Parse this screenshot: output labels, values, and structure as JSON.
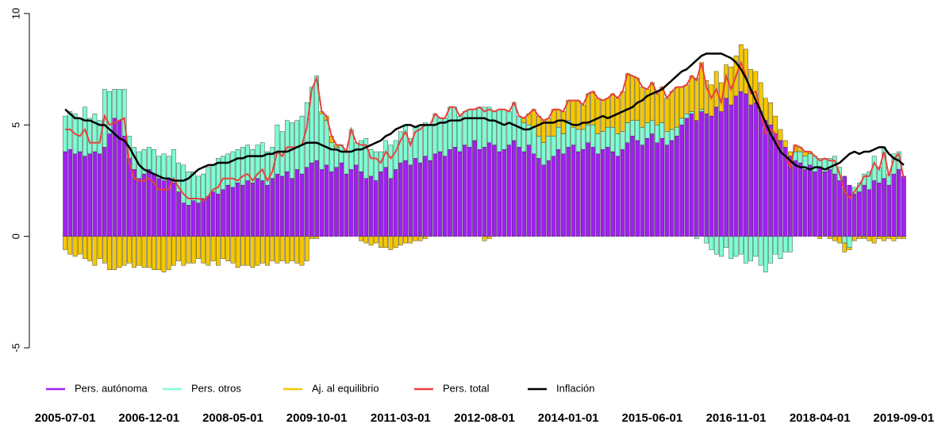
{
  "chart_data": {
    "type": "bar",
    "stacked": true,
    "legend": "bottom",
    "categories": [
      "2005-07-01",
      null,
      null,
      null,
      null,
      null,
      null,
      null,
      null,
      null,
      null,
      null,
      null,
      null,
      null,
      null,
      null,
      "2006-12-01",
      null,
      null,
      null,
      null,
      null,
      null,
      null,
      null,
      null,
      null,
      null,
      null,
      null,
      null,
      null,
      null,
      "2008-05-01",
      null,
      null,
      null,
      null,
      null,
      null,
      null,
      null,
      null,
      null,
      null,
      null,
      null,
      null,
      null,
      null,
      "2009-10-01",
      null,
      null,
      null,
      null,
      null,
      null,
      null,
      null,
      null,
      null,
      null,
      null,
      null,
      null,
      null,
      null,
      "2011-03-01",
      null,
      null,
      null,
      null,
      null,
      null,
      null,
      null,
      null,
      null,
      null,
      null,
      null,
      null,
      null,
      null,
      "2012-08-01",
      null,
      null,
      null,
      null,
      null,
      null,
      null,
      null,
      null,
      null,
      null,
      null,
      null,
      null,
      null,
      null,
      "2014-01-01",
      null,
      null,
      null,
      null,
      null,
      null,
      null,
      null,
      null,
      null,
      null,
      null,
      null,
      null,
      null,
      null,
      "2015-06-01",
      null,
      null,
      null,
      null,
      null,
      null,
      null,
      null,
      null,
      null,
      null,
      null,
      null,
      null,
      null,
      null,
      "2016-11-01",
      null,
      null,
      null,
      null,
      null,
      null,
      null,
      null,
      null,
      null,
      null,
      null,
      null,
      null,
      null,
      null,
      "2018-04-01",
      null,
      null,
      null,
      null,
      null,
      null,
      null,
      null,
      null,
      null,
      null,
      null,
      null,
      null,
      null,
      null,
      "2019-09-01"
    ],
    "ylim": [
      -5,
      10
    ],
    "yticks": [
      -5,
      0,
      5,
      10
    ],
    "series": [
      {
        "name": "Pers. autónoma",
        "type": "bar",
        "color": "#a020f0",
        "values": [
          3.8,
          3.9,
          3.7,
          3.8,
          3.6,
          3.7,
          3.8,
          3.7,
          4.0,
          4.6,
          5.3,
          5.2,
          4.5,
          3.5,
          3.0,
          2.6,
          2.8,
          3.0,
          2.8,
          2.6,
          2.5,
          2.6,
          2.4,
          2.0,
          1.5,
          1.4,
          1.6,
          1.5,
          1.7,
          1.8,
          2.0,
          1.9,
          2.1,
          2.3,
          2.2,
          2.4,
          2.3,
          2.5,
          2.4,
          2.6,
          2.5,
          2.3,
          2.6,
          2.8,
          2.7,
          2.9,
          2.6,
          3.0,
          2.8,
          3.1,
          3.3,
          3.4,
          3.0,
          3.2,
          2.9,
          3.1,
          3.3,
          2.8,
          3.0,
          3.2,
          2.9,
          2.6,
          2.7,
          2.5,
          2.9,
          3.1,
          2.6,
          3.0,
          3.3,
          3.4,
          3.2,
          3.5,
          3.3,
          3.6,
          3.4,
          3.7,
          3.8,
          3.6,
          3.9,
          4.0,
          3.8,
          4.1,
          4.0,
          4.3,
          3.9,
          4.0,
          4.2,
          4.1,
          3.8,
          3.9,
          4.1,
          4.3,
          4.0,
          3.8,
          4.1,
          3.7,
          3.5,
          3.2,
          3.4,
          3.6,
          3.9,
          3.7,
          4.0,
          4.1,
          3.8,
          3.9,
          4.2,
          4.0,
          3.7,
          3.9,
          4.0,
          3.8,
          3.6,
          3.9,
          4.2,
          4.5,
          4.3,
          4.1,
          4.4,
          4.6,
          4.2,
          4.4,
          4.1,
          4.3,
          4.5,
          5.0,
          5.3,
          5.5,
          5.2,
          5.6,
          5.5,
          5.4,
          5.8,
          5.6,
          6.2,
          5.9,
          6.3,
          6.5,
          6.4,
          5.9,
          6.0,
          5.6,
          5.2,
          5.0,
          4.6,
          4.3,
          4.0,
          3.6,
          3.4,
          3.3,
          3.0,
          3.2,
          2.9,
          3.1,
          2.9,
          3.0,
          2.8,
          2.5,
          2.7,
          2.3,
          1.9,
          2.0,
          2.3,
          2.1,
          2.5,
          2.4,
          2.6,
          2.3,
          2.8,
          3.0,
          2.7
        ]
      },
      {
        "name": "Pers. otros",
        "type": "bar",
        "color": "#7fffd4",
        "values": [
          1.6,
          1.7,
          1.8,
          1.5,
          2.2,
          1.6,
          1.7,
          1.5,
          2.6,
          1.9,
          1.3,
          1.4,
          2.1,
          1.0,
          1.0,
          1.2,
          1.1,
          1.0,
          1.1,
          1.0,
          1.2,
          1.0,
          1.5,
          1.3,
          1.7,
          1.5,
          1.3,
          1.2,
          1.1,
          1.3,
          1.2,
          1.6,
          1.5,
          1.4,
          1.6,
          1.5,
          1.7,
          1.6,
          1.5,
          1.5,
          1.7,
          1.5,
          1.4,
          2.2,
          2.0,
          2.3,
          2.5,
          2.2,
          2.6,
          2.9,
          3.4,
          3.8,
          2.5,
          2.0,
          1.3,
          0.9,
          0.8,
          1.0,
          1.8,
          1.0,
          1.4,
          1.8,
          1.2,
          1.3,
          0.9,
          1.2,
          1.5,
          1.3,
          1.4,
          1.6,
          1.2,
          1.4,
          1.7,
          1.5,
          1.6,
          1.8,
          1.5,
          1.7,
          1.9,
          1.8,
          1.6,
          1.5,
          1.7,
          1.4,
          1.9,
          1.8,
          1.6,
          1.5,
          1.9,
          1.8,
          1.5,
          1.7,
          1.4,
          1.3,
          0.9,
          1.2,
          1.0,
          1.0,
          1.1,
          0.9,
          1.0,
          0.9,
          1.2,
          0.8,
          1.0,
          0.9,
          0.8,
          1.0,
          0.9,
          0.8,
          0.9,
          1.1,
          1.0,
          0.8,
          0.9,
          0.7,
          0.9,
          0.8,
          0.7,
          0.6,
          0.8,
          0.7,
          0.6,
          0.5,
          0.4,
          0.3,
          0.2,
          0.1,
          -0.1,
          0.1,
          -0.3,
          -0.6,
          -0.8,
          -0.9,
          -0.5,
          -1.0,
          -0.9,
          -0.8,
          -1.2,
          -1.1,
          -0.9,
          -1.3,
          -1.6,
          -1.2,
          -0.8,
          -1.0,
          -0.7,
          -0.7,
          0.4,
          0.5,
          0.6,
          0.5,
          0.7,
          0.4,
          0.6,
          0.5,
          0.8,
          0.6,
          -0.3,
          -0.5,
          0.3,
          0.4,
          0.5,
          0.8,
          1.1,
          0.7,
          1.4,
          0.5,
          0.9,
          0.8,
          0.0
        ]
      },
      {
        "name": "Aj. al equilibrio",
        "type": "bar",
        "color": "#f5c800",
        "values": [
          -0.6,
          -0.8,
          -0.9,
          -0.8,
          -1.0,
          -1.1,
          -1.3,
          -1.0,
          -1.2,
          -1.5,
          -1.5,
          -1.4,
          -1.3,
          -1.2,
          -1.4,
          -1.3,
          -1.4,
          -1.4,
          -1.5,
          -1.5,
          -1.6,
          -1.5,
          -1.3,
          -1.1,
          -1.3,
          -1.2,
          -1.2,
          -1.0,
          -1.2,
          -1.3,
          -1.1,
          -1.3,
          -1.0,
          -1.1,
          -1.2,
          -1.4,
          -1.3,
          -1.3,
          -1.4,
          -1.3,
          -1.2,
          -1.3,
          -1.1,
          -1.2,
          -1.1,
          -1.2,
          -1.1,
          -1.2,
          -1.3,
          -1.1,
          -0.1,
          -0.1,
          0.1,
          0.2,
          0.3,
          0.1,
          0,
          0,
          0,
          0,
          -0.2,
          -0.3,
          -0.4,
          -0.3,
          -0.5,
          -0.5,
          -0.6,
          -0.5,
          -0.4,
          -0.3,
          -0.3,
          -0.2,
          -0.2,
          -0.1,
          0,
          0,
          0,
          0,
          0,
          0,
          0,
          0,
          0,
          0,
          0,
          -0.2,
          -0.1,
          0,
          0,
          0,
          0,
          0,
          0,
          0.2,
          0.5,
          0.8,
          0.9,
          1.0,
          0.8,
          1.2,
          0.8,
          1.0,
          0.9,
          1.2,
          1.3,
          1.1,
          1.4,
          1.5,
          1.6,
          1.4,
          1.3,
          1.5,
          1.6,
          1.8,
          2.2,
          2.0,
          1.9,
          1.8,
          1.5,
          1.7,
          1.4,
          1.6,
          1.5,
          1.7,
          1.8,
          1.4,
          1.3,
          1.6,
          1.9,
          2.1,
          1.5,
          1.4,
          1.6,
          1.3,
          1.5,
          1.7,
          1.8,
          2.1,
          2.0,
          1.6,
          1.4,
          1.3,
          1.0,
          1.0,
          0.8,
          0.5,
          0.3,
          0.2,
          0.3,
          0.2,
          0.2,
          0.1,
          0,
          -0.1,
          0,
          -0.1,
          -0.2,
          -0.3,
          -0.4,
          -0.1,
          -0.2,
          -0.1,
          -0.1,
          -0.2,
          -0.3,
          -0.1,
          -0.2,
          -0.1,
          -0.2,
          -0.1,
          -0.1
        ]
      },
      {
        "name": "Pers. total",
        "type": "line",
        "color": "#e8413c",
        "values": [
          4.8,
          4.8,
          4.6,
          4.5,
          4.8,
          4.2,
          4.2,
          4.2,
          5.4,
          5.0,
          5.1,
          5.2,
          5.3,
          3.3,
          2.6,
          2.5,
          2.5,
          2.6,
          2.4,
          2.1,
          2.1,
          2.1,
          2.6,
          2.2,
          1.9,
          1.7,
          1.7,
          1.7,
          1.6,
          1.8,
          2.1,
          2.2,
          2.6,
          2.6,
          2.6,
          2.5,
          2.7,
          2.8,
          2.5,
          2.8,
          3.0,
          2.5,
          2.9,
          3.8,
          3.6,
          4.0,
          4.0,
          4.0,
          4.1,
          4.9,
          6.6,
          7.1,
          5.6,
          5.4,
          4.5,
          4.1,
          4.1,
          3.8,
          4.8,
          4.2,
          4.1,
          4.1,
          3.5,
          3.5,
          3.3,
          3.8,
          3.5,
          3.8,
          4.3,
          4.7,
          4.1,
          4.7,
          4.8,
          5.0,
          5.0,
          5.5,
          5.3,
          5.3,
          5.8,
          5.8,
          5.4,
          5.6,
          5.7,
          5.7,
          5.8,
          5.6,
          5.7,
          5.6,
          5.7,
          5.7,
          5.6,
          6.0,
          5.4,
          5.3,
          5.5,
          5.7,
          5.4,
          5.2,
          5.3,
          5.7,
          5.7,
          5.6,
          6.1,
          6.1,
          6.1,
          5.9,
          6.4,
          6.5,
          6.2,
          6.1,
          6.2,
          6.4,
          6.2,
          6.5,
          7.3,
          7.2,
          7.1,
          6.7,
          6.6,
          6.9,
          6.4,
          6.7,
          6.2,
          6.5,
          6.7,
          6.7,
          6.8,
          7.2,
          7.0,
          7.8,
          6.7,
          6.2,
          6.6,
          6.0,
          7.2,
          6.6,
          7.2,
          7.8,
          7.2,
          6.4,
          6.5,
          5.6,
          4.6,
          4.8,
          4.6,
          3.8,
          3.6,
          3.1,
          4.1,
          4.0,
          3.8,
          3.8,
          3.6,
          3.4,
          3.5,
          3.4,
          3.4,
          2.8,
          2.0,
          1.7,
          2.0,
          2.3,
          2.7,
          2.7,
          3.3,
          3.0,
          3.8,
          2.7,
          3.5,
          3.7,
          2.6
        ]
      },
      {
        "name": "Inflación",
        "type": "line",
        "color": "#000000",
        "values": [
          5.7,
          5.5,
          5.3,
          5.3,
          5.2,
          5.2,
          5.1,
          5.0,
          5.0,
          4.8,
          4.6,
          4.4,
          4.3,
          4.0,
          3.6,
          3.2,
          3.0,
          2.9,
          2.8,
          2.7,
          2.6,
          2.6,
          2.5,
          2.5,
          2.5,
          2.6,
          2.8,
          3.0,
          3.1,
          3.2,
          3.2,
          3.3,
          3.3,
          3.3,
          3.4,
          3.5,
          3.5,
          3.6,
          3.6,
          3.6,
          3.6,
          3.7,
          3.7,
          3.8,
          3.8,
          3.8,
          3.9,
          4.0,
          4.1,
          4.2,
          4.2,
          4.2,
          4.1,
          4.0,
          3.9,
          3.9,
          3.8,
          3.8,
          3.8,
          3.9,
          3.9,
          4.0,
          4.1,
          4.2,
          4.3,
          4.5,
          4.6,
          4.8,
          4.9,
          5.0,
          5.0,
          4.9,
          5.0,
          5.0,
          5.0,
          5.0,
          5.1,
          5.1,
          5.2,
          5.2,
          5.2,
          5.3,
          5.3,
          5.3,
          5.3,
          5.3,
          5.2,
          5.2,
          5.1,
          5.0,
          5.1,
          5.0,
          4.9,
          4.8,
          4.8,
          4.9,
          5.0,
          5.1,
          5.1,
          5.1,
          5.2,
          5.2,
          5.1,
          5.0,
          5.0,
          5.1,
          5.1,
          5.2,
          5.3,
          5.4,
          5.3,
          5.4,
          5.5,
          5.6,
          5.7,
          5.8,
          6.0,
          6.1,
          6.3,
          6.4,
          6.5,
          6.6,
          6.8,
          7.0,
          7.2,
          7.4,
          7.5,
          7.7,
          7.9,
          8.1,
          8.2,
          8.2,
          8.2,
          8.2,
          8.1,
          8.0,
          7.8,
          7.5,
          7.1,
          6.6,
          6.1,
          5.6,
          5.1,
          4.6,
          4.2,
          3.8,
          3.6,
          3.4,
          3.2,
          3.1,
          3.1,
          3.0,
          3.1,
          3.1,
          3.0,
          3.1,
          3.2,
          3.3,
          3.5,
          3.7,
          3.8,
          3.7,
          3.8,
          3.8,
          3.9,
          4.0,
          4.0,
          3.7,
          3.5,
          3.4,
          3.2
        ]
      }
    ]
  }
}
